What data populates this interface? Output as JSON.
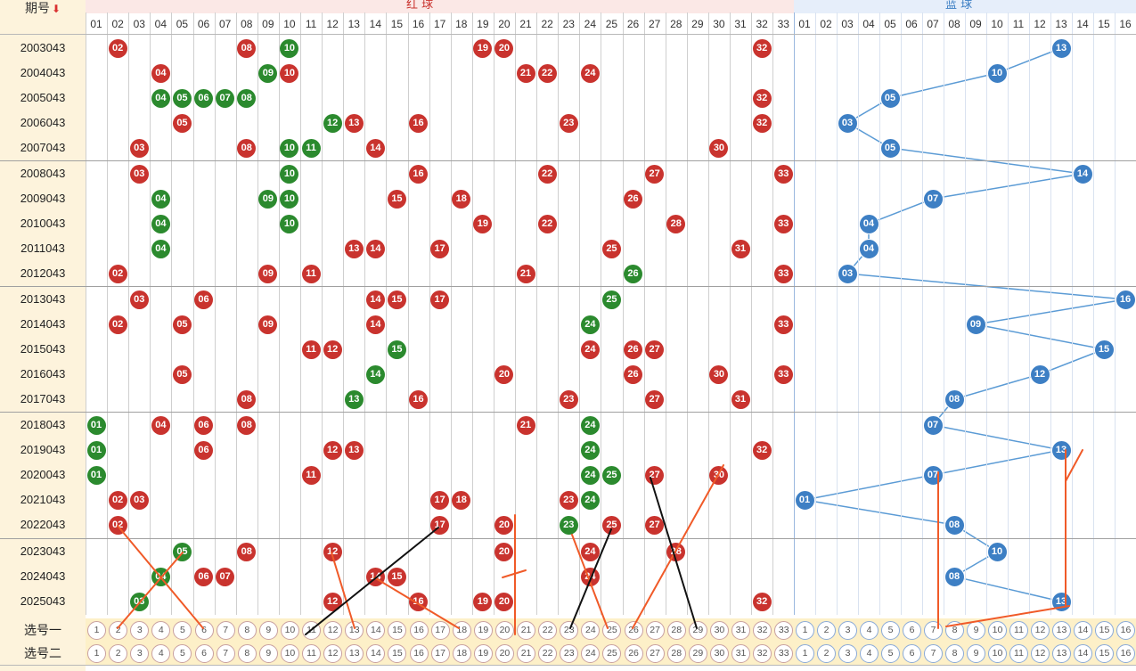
{
  "header": {
    "period_label": "期号",
    "sort_icon": "down-arrow-icon",
    "red_zone_label": "红 球",
    "blue_zone_label": "蓝 球"
  },
  "red_numbers": [
    "01",
    "02",
    "03",
    "04",
    "05",
    "06",
    "07",
    "08",
    "09",
    "10",
    "11",
    "12",
    "13",
    "14",
    "15",
    "16",
    "17",
    "18",
    "19",
    "20",
    "21",
    "22",
    "23",
    "24",
    "25",
    "26",
    "27",
    "28",
    "29",
    "30",
    "31",
    "32",
    "33"
  ],
  "blue_numbers": [
    "01",
    "02",
    "03",
    "04",
    "05",
    "06",
    "07",
    "08",
    "09",
    "10",
    "11",
    "12",
    "13",
    "14",
    "15",
    "16"
  ],
  "rows": [
    {
      "period": "2003043",
      "red": [
        {
          "n": 2
        },
        {
          "n": 8
        },
        {
          "n": 10,
          "c": "g"
        },
        {
          "n": 19
        },
        {
          "n": 20
        },
        {
          "n": 32
        }
      ],
      "blue": 13
    },
    {
      "period": "2004043",
      "red": [
        {
          "n": 4
        },
        {
          "n": 9,
          "c": "g"
        },
        {
          "n": 10
        },
        {
          "n": 21
        },
        {
          "n": 22
        },
        {
          "n": 24
        }
      ],
      "blue": 10
    },
    {
      "period": "2005043",
      "red": [
        {
          "n": 4,
          "c": "g"
        },
        {
          "n": 5,
          "c": "g"
        },
        {
          "n": 6,
          "c": "g"
        },
        {
          "n": 7,
          "c": "g"
        },
        {
          "n": 8,
          "c": "g"
        },
        {
          "n": 32
        }
      ],
      "blue": 5
    },
    {
      "period": "2006043",
      "red": [
        {
          "n": 5
        },
        {
          "n": 12,
          "c": "g"
        },
        {
          "n": 13
        },
        {
          "n": 16
        },
        {
          "n": 23
        },
        {
          "n": 32
        }
      ],
      "blue": 3
    },
    {
      "period": "2007043",
      "red": [
        {
          "n": 3
        },
        {
          "n": 8
        },
        {
          "n": 10,
          "c": "g"
        },
        {
          "n": 11,
          "c": "g"
        },
        {
          "n": 14
        },
        {
          "n": 30
        }
      ],
      "blue": 5
    },
    {
      "period": "2008043",
      "red": [
        {
          "n": 3
        },
        {
          "n": 10,
          "c": "g"
        },
        {
          "n": 16
        },
        {
          "n": 22
        },
        {
          "n": 27
        },
        {
          "n": 33
        }
      ],
      "blue": 14
    },
    {
      "period": "2009043",
      "red": [
        {
          "n": 4,
          "c": "g"
        },
        {
          "n": 9,
          "c": "g"
        },
        {
          "n": 10,
          "c": "g"
        },
        {
          "n": 15
        },
        {
          "n": 18
        },
        {
          "n": 26
        }
      ],
      "blue": 7
    },
    {
      "period": "2010043",
      "red": [
        {
          "n": 4,
          "c": "g"
        },
        {
          "n": 10,
          "c": "g"
        },
        {
          "n": 19
        },
        {
          "n": 22
        },
        {
          "n": 28
        },
        {
          "n": 33
        }
      ],
      "blue": 4
    },
    {
      "period": "2011043",
      "red": [
        {
          "n": 4,
          "c": "g"
        },
        {
          "n": 13
        },
        {
          "n": 14
        },
        {
          "n": 17
        },
        {
          "n": 25
        },
        {
          "n": 31
        }
      ],
      "blue": 4
    },
    {
      "period": "2012043",
      "red": [
        {
          "n": 2
        },
        {
          "n": 9
        },
        {
          "n": 11
        },
        {
          "n": 21
        },
        {
          "n": 26,
          "c": "g"
        },
        {
          "n": 33
        }
      ],
      "blue": 3
    },
    {
      "period": "2013043",
      "red": [
        {
          "n": 3
        },
        {
          "n": 6
        },
        {
          "n": 14
        },
        {
          "n": 15
        },
        {
          "n": 17
        },
        {
          "n": 25,
          "c": "g"
        }
      ],
      "blue": 16
    },
    {
      "period": "2014043",
      "red": [
        {
          "n": 2
        },
        {
          "n": 5
        },
        {
          "n": 9
        },
        {
          "n": 14
        },
        {
          "n": 24,
          "c": "g"
        },
        {
          "n": 33
        }
      ],
      "blue": 9
    },
    {
      "period": "2015043",
      "red": [
        {
          "n": 11
        },
        {
          "n": 12
        },
        {
          "n": 15,
          "c": "g"
        },
        {
          "n": 24
        },
        {
          "n": 26
        },
        {
          "n": 27
        }
      ],
      "blue": 15
    },
    {
      "period": "2016043",
      "red": [
        {
          "n": 5
        },
        {
          "n": 14,
          "c": "g"
        },
        {
          "n": 20
        },
        {
          "n": 26
        },
        {
          "n": 30
        },
        {
          "n": 33
        }
      ],
      "blue": 12
    },
    {
      "period": "2017043",
      "red": [
        {
          "n": 8
        },
        {
          "n": 13,
          "c": "g"
        },
        {
          "n": 16
        },
        {
          "n": 23
        },
        {
          "n": 27
        },
        {
          "n": 31
        }
      ],
      "blue": 8
    },
    {
      "period": "2018043",
      "red": [
        {
          "n": 1,
          "c": "g"
        },
        {
          "n": 4
        },
        {
          "n": 6
        },
        {
          "n": 8
        },
        {
          "n": 21
        },
        {
          "n": 24,
          "c": "g"
        }
      ],
      "blue": 7
    },
    {
      "period": "2019043",
      "red": [
        {
          "n": 1,
          "c": "g"
        },
        {
          "n": 6
        },
        {
          "n": 12
        },
        {
          "n": 13
        },
        {
          "n": 24,
          "c": "g"
        },
        {
          "n": 32
        }
      ],
      "blue": 13
    },
    {
      "period": "2020043",
      "red": [
        {
          "n": 1,
          "c": "g"
        },
        {
          "n": 11
        },
        {
          "n": 24,
          "c": "g"
        },
        {
          "n": 25,
          "c": "g"
        },
        {
          "n": 27
        },
        {
          "n": 30
        }
      ],
      "blue": 7
    },
    {
      "period": "2021043",
      "red": [
        {
          "n": 2
        },
        {
          "n": 3
        },
        {
          "n": 17
        },
        {
          "n": 18
        },
        {
          "n": 23
        },
        {
          "n": 24,
          "c": "g"
        }
      ],
      "blue": 1
    },
    {
      "period": "2022043",
      "red": [
        {
          "n": 2
        },
        {
          "n": 17
        },
        {
          "n": 20
        },
        {
          "n": 23,
          "c": "g"
        },
        {
          "n": 25
        },
        {
          "n": 27
        }
      ],
      "blue": 8
    },
    {
      "period": "2023043",
      "red": [
        {
          "n": 5,
          "c": "g"
        },
        {
          "n": 8
        },
        {
          "n": 12
        },
        {
          "n": 20
        },
        {
          "n": 24
        },
        {
          "n": 28
        }
      ],
      "blue": 10
    },
    {
      "period": "2024043",
      "red": [
        {
          "n": 4,
          "c": "g"
        },
        {
          "n": 6
        },
        {
          "n": 7
        },
        {
          "n": 14
        },
        {
          "n": 15
        },
        {
          "n": 24
        }
      ],
      "blue": 8
    },
    {
      "period": "2025043",
      "red": [
        {
          "n": 3,
          "c": "g"
        },
        {
          "n": 12
        },
        {
          "n": 16
        },
        {
          "n": 19
        },
        {
          "n": 20
        },
        {
          "n": 32
        }
      ],
      "blue": 13
    }
  ],
  "pick_rows": [
    {
      "label": "选号一"
    },
    {
      "label": "选号二"
    }
  ],
  "pick_red_numbers": [
    "1",
    "2",
    "3",
    "4",
    "5",
    "6",
    "7",
    "8",
    "9",
    "10",
    "11",
    "12",
    "13",
    "14",
    "15",
    "16",
    "17",
    "18",
    "19",
    "20",
    "21",
    "22",
    "23",
    "24",
    "25",
    "26",
    "27",
    "28",
    "29",
    "30",
    "31",
    "32",
    "33"
  ],
  "pick_blue_numbers": [
    "1",
    "2",
    "3",
    "4",
    "5",
    "6",
    "7",
    "8",
    "9",
    "10",
    "11",
    "12",
    "13",
    "14",
    "15",
    "16"
  ],
  "colors": {
    "red_ball": "#c9332e",
    "green_ball": "#2b8a2e",
    "blue_ball": "#3d7fc4",
    "trend_line": "#5b9bd5",
    "annotation_orange": "#f05a28",
    "annotation_black": "#111111"
  }
}
